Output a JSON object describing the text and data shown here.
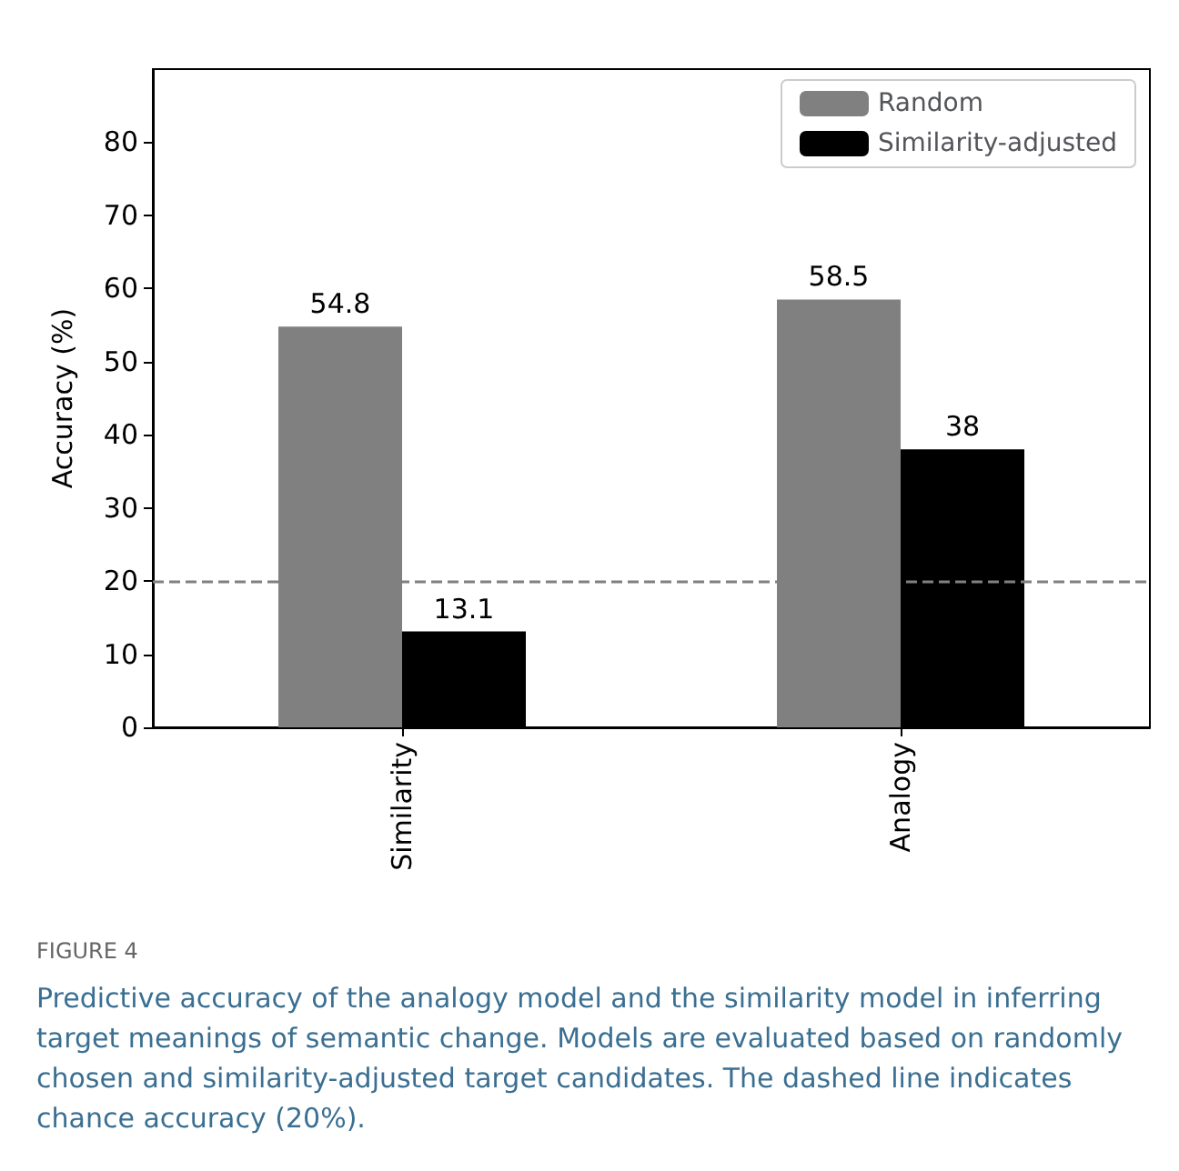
{
  "chart_data": {
    "type": "bar",
    "ylabel": "Accuracy (%)",
    "categories": [
      "Similarity",
      "Analogy"
    ],
    "series": [
      {
        "name": "Random",
        "color": "#808080",
        "values": [
          54.8,
          58.5
        ]
      },
      {
        "name": "Similarity-adjusted",
        "color": "#000000",
        "values": [
          13.1,
          38
        ]
      }
    ],
    "ylim": [
      0,
      90
    ],
    "yticks": [
      0,
      10,
      20,
      30,
      40,
      50,
      60,
      70,
      80
    ],
    "grid": false,
    "legend": "top right",
    "data_labels": true,
    "ref_lines": [
      {
        "axis": "y",
        "value": 20,
        "color": "#808080",
        "line_style": "dashed"
      }
    ],
    "annotations": [
      "FIGURE 4",
      "Predictive accuracy of the analogy model and the similarity model in inferring target meanings of semantic change. Models are evaluated based on randomly chosen and similarity-adjusted target candidates. The dashed line indicates chance accuracy (20%)."
    ]
  }
}
